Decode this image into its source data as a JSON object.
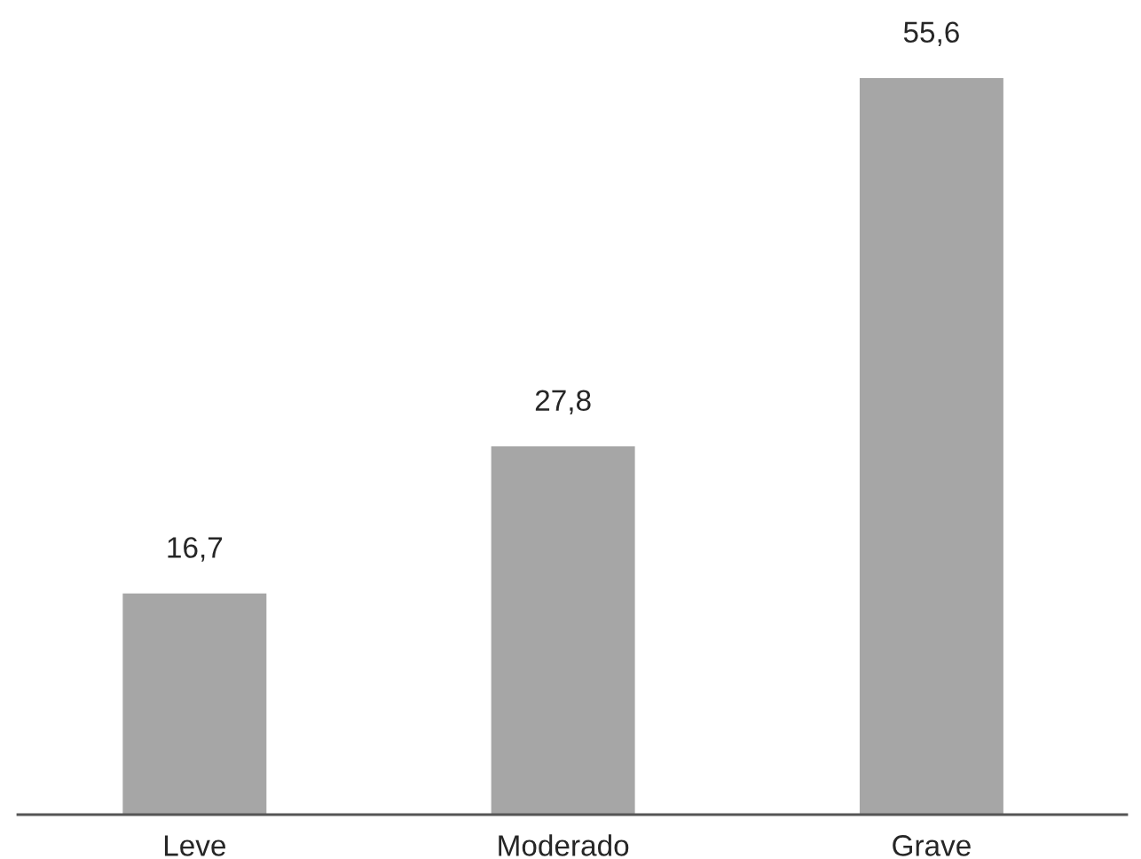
{
  "chart_data": {
    "type": "bar",
    "categories": [
      "Leve",
      "Moderado",
      "Grave"
    ],
    "values": [
      16.7,
      27.8,
      55.6
    ],
    "value_labels": [
      "16,7",
      "27,8",
      "55,6"
    ],
    "color": "#a6a6a6",
    "grid": false,
    "legend": false
  }
}
